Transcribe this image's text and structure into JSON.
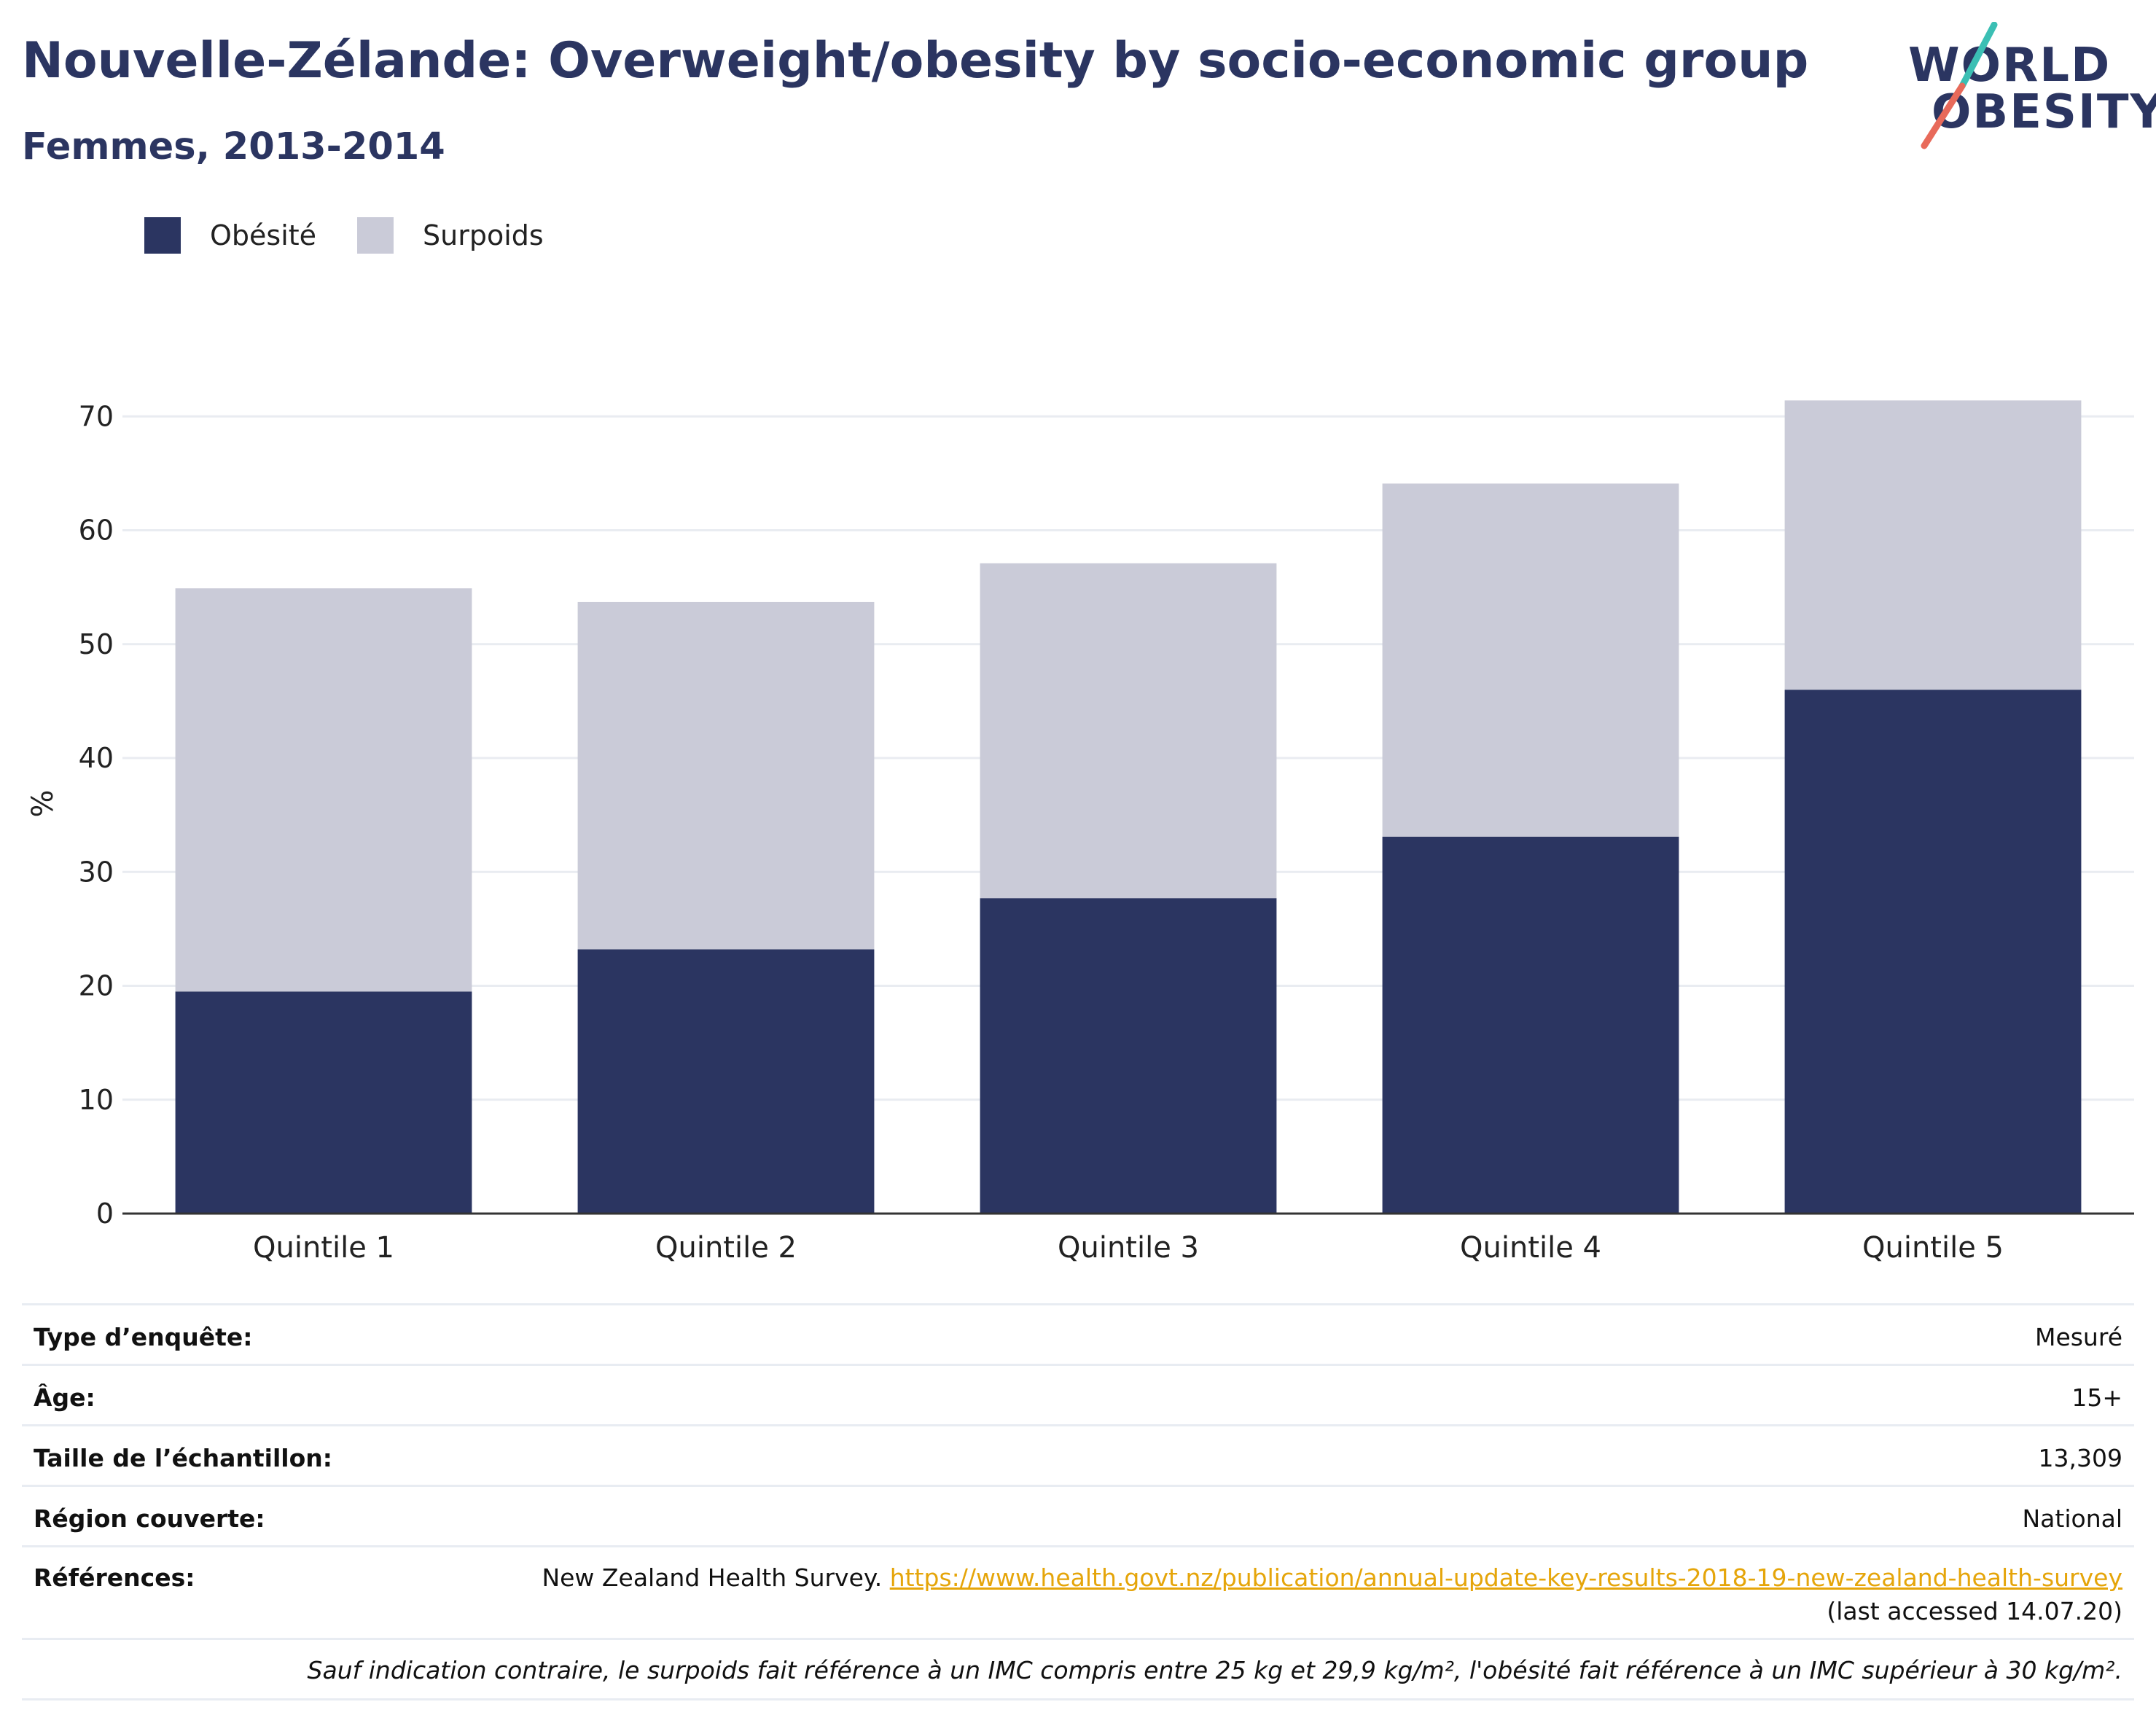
{
  "header": {
    "title": "Nouvelle-Zélande: Overweight/obesity by socio-economic group",
    "subtitle": "Femmes, 2013-2014"
  },
  "logo": {
    "line1": "WORLD",
    "line2": "OBESITY"
  },
  "colors": {
    "obesite": "#2b3561",
    "surpoids": "#cacbd8",
    "title": "#2b3561",
    "link": "#e5a50a"
  },
  "legend": [
    {
      "label": "Obésité",
      "color": "#2b3561"
    },
    {
      "label": "Surpoids",
      "color": "#cacbd8"
    }
  ],
  "chart_data": {
    "type": "bar",
    "stacked": true,
    "categories": [
      "Quintile 1",
      "Quintile 2",
      "Quintile 3",
      "Quintile 4",
      "Quintile 5"
    ],
    "series": [
      {
        "name": "Obésité",
        "values": [
          19.5,
          23.2,
          27.7,
          33.1,
          46.0
        ]
      },
      {
        "name": "Surpoids",
        "values": [
          35.4,
          30.5,
          29.4,
          31.0,
          25.4
        ]
      }
    ],
    "ylabel": "%",
    "ylim": [
      0,
      72
    ],
    "yticks": [
      0,
      10,
      20,
      30,
      40,
      50,
      60,
      70
    ],
    "grid": true,
    "legend_position": "top-left"
  },
  "info": {
    "rows": [
      {
        "key": "Type d’enquête:",
        "value": "Mesuré"
      },
      {
        "key": "Âge:",
        "value": "15+"
      },
      {
        "key": "Taille de l’échantillon:",
        "value": "13,309"
      },
      {
        "key": "Région couverte:",
        "value": "National"
      }
    ],
    "references": {
      "key": "Références:",
      "text": "New Zealand Health Survey. ",
      "link": "https://www.health.govt.nz/publication/annual-update-key-results-2018-19-new-zealand-health-survey",
      "accessed": "(last accessed 14.07.20)"
    },
    "note": "Sauf indication contraire, le surpoids fait référence à un IMC compris entre 25 kg et 29,9 kg/m², l'obésité fait référence à un IMC supérieur à 30 kg/m²."
  }
}
